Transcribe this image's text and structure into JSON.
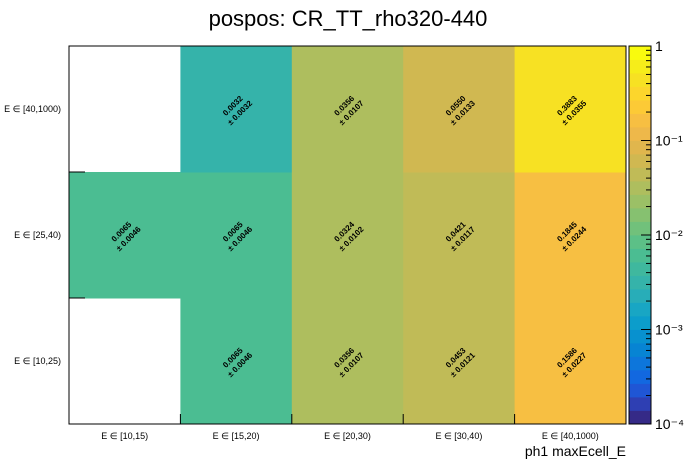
{
  "chart_data": {
    "type": "heatmap",
    "title": "pospos: CR_TT_rho320-440",
    "xlabel": "ph1 maxEcell_E",
    "ylabel": "",
    "x_categories": [
      "E ∈ [10,15)",
      "E ∈ [15,20)",
      "E ∈ [20,30)",
      "E ∈ [30,40)",
      "E ∈ [40,1000)"
    ],
    "y_categories": [
      "E ∈ [10,25)",
      "E ∈ [25,40)",
      "E ∈ [40,1000)"
    ],
    "cells": [
      {
        "x": 0,
        "y": 0,
        "value": null,
        "error": null,
        "label": "",
        "err_label": ""
      },
      {
        "x": 1,
        "y": 0,
        "value": 0.0065,
        "error": 0.0046,
        "label": "0.0065",
        "err_label": "± 0.0046"
      },
      {
        "x": 2,
        "y": 0,
        "value": 0.0356,
        "error": 0.0107,
        "label": "0.0356",
        "err_label": "± 0.0107"
      },
      {
        "x": 3,
        "y": 0,
        "value": 0.0453,
        "error": 0.0121,
        "label": "0.0453",
        "err_label": "± 0.0121"
      },
      {
        "x": 4,
        "y": 0,
        "value": 0.1586,
        "error": 0.0227,
        "label": "0.1586",
        "err_label": "± 0.0227"
      },
      {
        "x": 0,
        "y": 1,
        "value": 0.0065,
        "error": 0.0046,
        "label": "0.0065",
        "err_label": "± 0.0046"
      },
      {
        "x": 1,
        "y": 1,
        "value": 0.0065,
        "error": 0.0046,
        "label": "0.0065",
        "err_label": "± 0.0046"
      },
      {
        "x": 2,
        "y": 1,
        "value": 0.0324,
        "error": 0.0102,
        "label": "0.0324",
        "err_label": "± 0.0102"
      },
      {
        "x": 3,
        "y": 1,
        "value": 0.0421,
        "error": 0.0117,
        "label": "0.0421",
        "err_label": "± 0.0117"
      },
      {
        "x": 4,
        "y": 1,
        "value": 0.1845,
        "error": 0.0244,
        "label": "0.1845",
        "err_label": "± 0.0244"
      },
      {
        "x": 0,
        "y": 2,
        "value": null,
        "error": null,
        "label": "",
        "err_label": ""
      },
      {
        "x": 1,
        "y": 2,
        "value": 0.0032,
        "error": 0.0032,
        "label": "0.0032",
        "err_label": "± 0.0032"
      },
      {
        "x": 2,
        "y": 2,
        "value": 0.0356,
        "error": 0.0107,
        "label": "0.0356",
        "err_label": "± 0.0107"
      },
      {
        "x": 3,
        "y": 2,
        "value": 0.055,
        "error": 0.0133,
        "label": "0.0550",
        "err_label": "± 0.0133"
      },
      {
        "x": 4,
        "y": 2,
        "value": 0.3883,
        "error": 0.0355,
        "label": "0.3883",
        "err_label": "± 0.0355"
      }
    ],
    "colorbar": {
      "scale": "log",
      "min": 0.0001,
      "max": 1,
      "tick_labels": [
        {
          "value": 1,
          "label": "1"
        },
        {
          "value": 0.1,
          "label": "10⁻¹"
        },
        {
          "value": 0.01,
          "label": "10⁻²"
        },
        {
          "value": 0.001,
          "label": "10⁻³"
        },
        {
          "value": 0.0001,
          "label": "10⁻⁴"
        }
      ],
      "palette": [
        "#352a87",
        "#2e3fb3",
        "#1f56d5",
        "#1268e0",
        "#0d76db",
        "#0784d3",
        "#0891cf",
        "#0c9dcb",
        "#18a6c4",
        "#28adb8",
        "#35b3aa",
        "#3fb89e",
        "#4bbd92",
        "#5cc087",
        "#71c17b",
        "#86c170",
        "#9bc066",
        "#aebe5e",
        "#c0bb57",
        "#d0b851",
        "#e0b64d",
        "#eeb84a",
        "#f7bf42",
        "#fcca36",
        "#fcd62c",
        "#f7e123",
        "#f6ed1a",
        "#f9fb0e"
      ]
    }
  }
}
